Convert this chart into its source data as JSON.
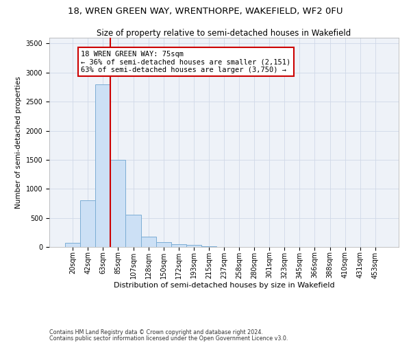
{
  "title1": "18, WREN GREEN WAY, WRENTHORPE, WAKEFIELD, WF2 0FU",
  "title2": "Size of property relative to semi-detached houses in Wakefield",
  "xlabel": "Distribution of semi-detached houses by size in Wakefield",
  "ylabel": "Number of semi-detached properties",
  "footnote1": "Contains HM Land Registry data © Crown copyright and database right 2024.",
  "footnote2": "Contains public sector information licensed under the Open Government Licence v3.0.",
  "annotation_line1": "18 WREN GREEN WAY: 75sqm",
  "annotation_line2": "← 36% of semi-detached houses are smaller (2,151)",
  "annotation_line3": "63% of semi-detached houses are larger (3,750) →",
  "bar_color": "#cce0f5",
  "bar_edge_color": "#7badd4",
  "vline_color": "#cc0000",
  "grid_color": "#d0d8e8",
  "background_color": "#eef2f8",
  "categories": [
    "20sqm",
    "42sqm",
    "63sqm",
    "85sqm",
    "107sqm",
    "128sqm",
    "150sqm",
    "172sqm",
    "193sqm",
    "215sqm",
    "237sqm",
    "258sqm",
    "280sqm",
    "301sqm",
    "323sqm",
    "345sqm",
    "366sqm",
    "388sqm",
    "410sqm",
    "431sqm",
    "453sqm"
  ],
  "values": [
    70,
    800,
    2800,
    1500,
    550,
    175,
    85,
    50,
    30,
    10,
    5,
    3,
    2,
    1,
    1,
    0,
    0,
    0,
    0,
    0,
    0
  ],
  "ylim": [
    0,
    3600
  ],
  "yticks": [
    0,
    500,
    1000,
    1500,
    2000,
    2500,
    3000,
    3500
  ],
  "vline_x_index": 2.5,
  "title1_fontsize": 9.5,
  "title2_fontsize": 8.5,
  "xlabel_fontsize": 8,
  "ylabel_fontsize": 7.5,
  "tick_fontsize": 7,
  "annotation_fontsize": 7.5,
  "footnote_fontsize": 5.8
}
